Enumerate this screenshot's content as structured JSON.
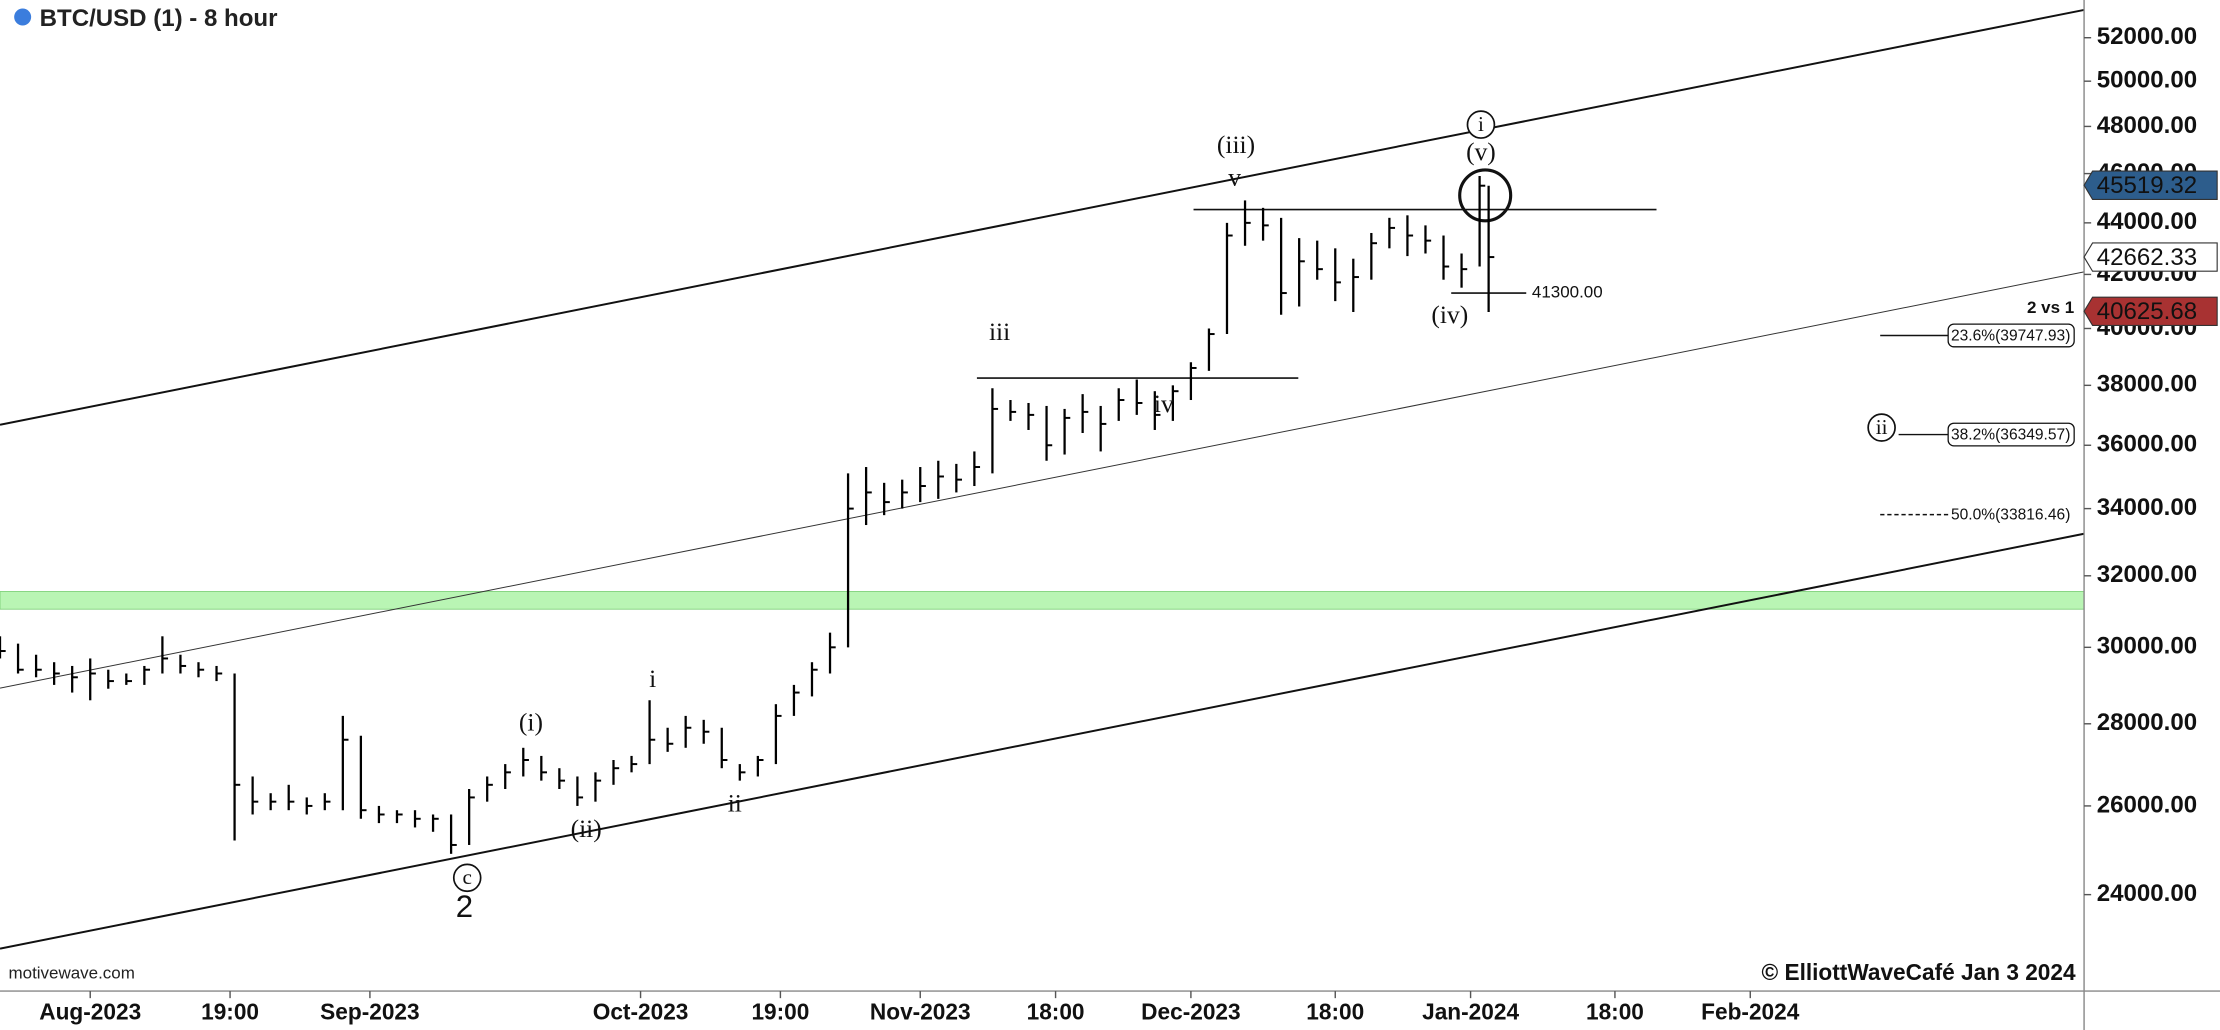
{
  "chart_data": {
    "type": "ohlc",
    "title": "BTC/USD (1) - 8 hour",
    "color": "#000000",
    "log_scale": true,
    "ylim": [
      22000,
      53800
    ],
    "yticks": [
      {
        "value": 24000,
        "label": "24000.00"
      },
      {
        "value": 26000,
        "label": "26000.00"
      },
      {
        "value": 28000,
        "label": "28000.00"
      },
      {
        "value": 30000,
        "label": "30000.00"
      },
      {
        "value": 32000,
        "label": "32000.00"
      },
      {
        "value": 34000,
        "label": "34000.00"
      },
      {
        "value": 36000,
        "label": "36000.00"
      },
      {
        "value": 38000,
        "label": "38000.00"
      },
      {
        "value": 40000,
        "label": "40000.00"
      },
      {
        "value": 42000,
        "label": "42000.00"
      },
      {
        "value": 44000,
        "label": "44000.00"
      },
      {
        "value": 46000,
        "label": "46000.00"
      },
      {
        "value": 48000,
        "label": "48000.00"
      },
      {
        "value": 50000,
        "label": "50000.00"
      },
      {
        "value": 52000,
        "label": "52000.00"
      }
    ],
    "xlim": [
      0,
      231
    ],
    "xticks": [
      {
        "value": 10,
        "label": "Aug-2023"
      },
      {
        "value": 25.5,
        "label": "19:00"
      },
      {
        "value": 41,
        "label": "Sep-2023"
      },
      {
        "value": 71,
        "label": "Oct-2023"
      },
      {
        "value": 86.5,
        "label": "19:00"
      },
      {
        "value": 102,
        "label": "Nov-2023"
      },
      {
        "value": 117,
        "label": "18:00"
      },
      {
        "value": 132,
        "label": "Dec-2023"
      },
      {
        "value": 148,
        "label": "18:00"
      },
      {
        "value": 163,
        "label": "Jan-2024"
      },
      {
        "value": 179,
        "label": "18:00"
      },
      {
        "value": 194,
        "label": "Feb-2024"
      }
    ],
    "x": [
      0,
      2,
      4,
      6,
      8,
      10,
      12,
      14,
      16,
      18,
      20,
      22,
      24,
      26,
      28,
      30,
      32,
      34,
      36,
      38,
      40,
      42,
      44,
      46,
      48,
      50,
      52,
      54,
      56,
      58,
      60,
      62,
      64,
      66,
      68,
      70,
      72,
      74,
      76,
      78,
      80,
      82,
      84,
      86,
      88,
      90,
      92,
      94,
      96,
      98,
      100,
      102,
      104,
      106,
      108,
      110,
      112,
      114,
      116,
      118,
      120,
      122,
      124,
      126,
      128,
      130,
      132,
      134,
      136,
      138,
      140,
      142,
      144,
      146,
      148,
      150,
      152,
      154,
      156,
      158,
      160,
      162,
      164,
      165
    ],
    "high": [
      30300,
      30100,
      29800,
      29600,
      29500,
      29700,
      29400,
      29300,
      29500,
      30300,
      29800,
      29600,
      29500,
      29300,
      26700,
      26300,
      26500,
      26200,
      26300,
      28200,
      27700,
      26000,
      25900,
      25900,
      25800,
      25800,
      26400,
      26700,
      27000,
      27400,
      27200,
      26900,
      26700,
      26800,
      27100,
      27200,
      28600,
      27900,
      28200,
      28100,
      27900,
      27000,
      27200,
      28500,
      29000,
      29600,
      30400,
      35100,
      35300,
      34800,
      34900,
      35300,
      35500,
      35400,
      35800,
      37900,
      37500,
      37400,
      37300,
      37200,
      37700,
      37300,
      37900,
      38200,
      37800,
      38000,
      38800,
      40000,
      44000,
      44900,
      44600,
      44200,
      43400,
      43300,
      43000,
      42600,
      43600,
      44200,
      44300,
      43900,
      43500,
      42800,
      45900,
      45500
    ],
    "low": [
      29700,
      29300,
      29200,
      29000,
      28800,
      28600,
      28900,
      29000,
      29000,
      29300,
      29300,
      29200,
      29100,
      25200,
      25800,
      25900,
      25900,
      25800,
      25900,
      25900,
      25700,
      25600,
      25600,
      25500,
      25400,
      24900,
      25100,
      26100,
      26400,
      26700,
      26600,
      26400,
      26000,
      26100,
      26500,
      26800,
      27000,
      27300,
      27400,
      27500,
      26900,
      26600,
      26700,
      27000,
      28200,
      28700,
      29300,
      30000,
      33500,
      33800,
      34000,
      34200,
      34300,
      34500,
      34700,
      35100,
      36800,
      36500,
      35500,
      35700,
      36400,
      35800,
      36800,
      37000,
      36500,
      36800,
      37500,
      38500,
      39800,
      43100,
      43300,
      40500,
      40800,
      41800,
      41000,
      40600,
      41800,
      43000,
      42700,
      42800,
      41800,
      41500,
      42300,
      40600
    ],
    "close": [
      29900,
      29400,
      29400,
      29300,
      29200,
      29300,
      29100,
      29100,
      29400,
      29700,
      29500,
      29400,
      29300,
      26500,
      26100,
      26100,
      26100,
      26000,
      26100,
      27600,
      25900,
      25800,
      25800,
      25700,
      25700,
      25100,
      26200,
      26500,
      26800,
      27100,
      26800,
      26600,
      26200,
      26600,
      26900,
      27000,
      27600,
      27500,
      27900,
      27800,
      27100,
      26800,
      27100,
      28200,
      28800,
      29400,
      30000,
      34000,
      34500,
      34200,
      34500,
      34700,
      35000,
      34900,
      35300,
      37200,
      37100,
      37000,
      36000,
      36900,
      37100,
      36700,
      37500,
      37400,
      37000,
      37800,
      38600,
      39800,
      43500,
      44000,
      43900,
      41300,
      42500,
      42200,
      41700,
      41900,
      43200,
      43800,
      43500,
      43300,
      42300,
      42200,
      45500,
      42662.33
    ],
    "zone": [
      31050,
      31550
    ],
    "zone_color": "#b9f5b4",
    "levels": [
      {
        "value": 44530
      },
      {
        "value": 38250
      },
      {
        "value": 41300,
        "label": "41300.00"
      }
    ],
    "fib_title": "2 vs 1",
    "fib_levels": [
      {
        "value": 39747.93,
        "label": "23.6%(39747.93)"
      },
      {
        "value": 36349.57,
        "label": "38.2%(36349.57)"
      },
      {
        "value": 33816.46,
        "label": "50.0%(33816.46)"
      }
    ],
    "price_labels": [
      {
        "value": 45519.32,
        "label": "45519.32",
        "color": "#2d5d8c",
        "text_color": "#ffffff"
      },
      {
        "value": 42662.33,
        "label": "42662.33",
        "color": "#ffffff",
        "text_color": "#111111"
      },
      {
        "value": 40625.68,
        "label": "40625.68",
        "color": "#a83232",
        "text_color": "#ffffff"
      }
    ],
    "wave_labels": [
      "(iii)",
      "v",
      "(v)",
      "iii",
      "iv",
      "(iv)",
      "i",
      "(i)",
      "(ii)",
      "ii",
      "2"
    ],
    "circled_labels": [
      "i",
      "c",
      "ii"
    ],
    "watermark": "motivewave.com",
    "copyright": "© ElliottWaveCafé Jan 3 2024"
  }
}
